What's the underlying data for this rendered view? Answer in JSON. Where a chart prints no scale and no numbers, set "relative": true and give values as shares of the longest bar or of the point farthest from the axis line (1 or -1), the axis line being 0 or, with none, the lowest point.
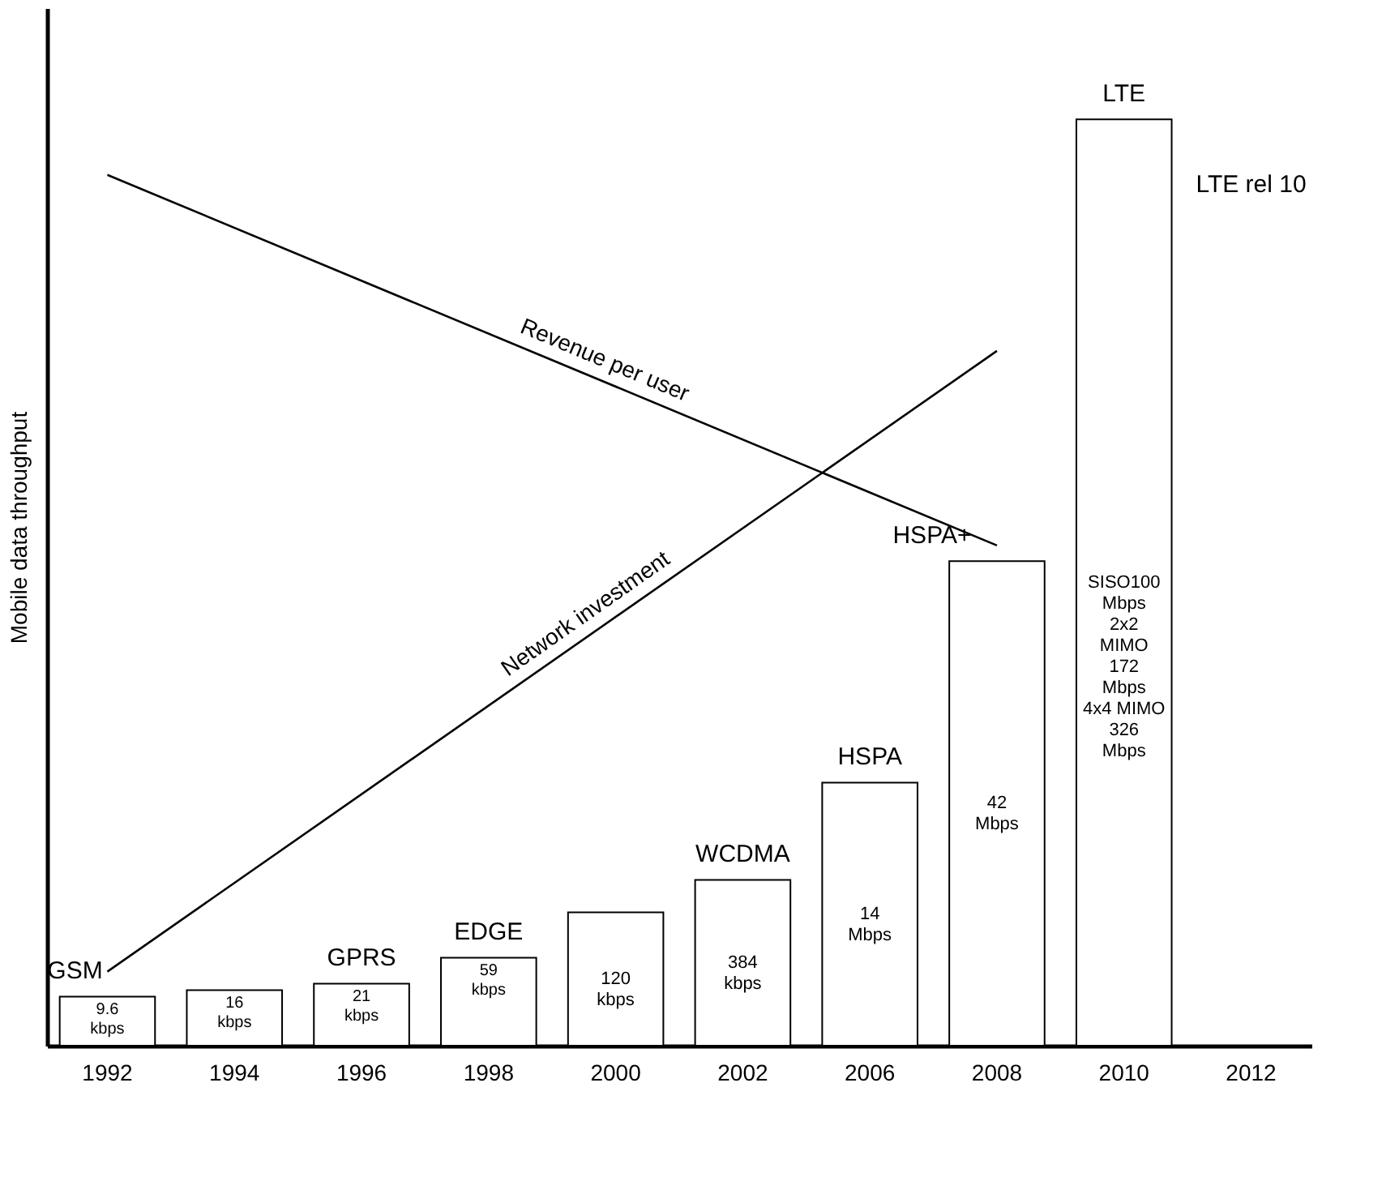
{
  "chart_data": {
    "type": "bar",
    "relative": true,
    "ylabel": "Mobile data throughput",
    "categories": [
      "1992",
      "1994",
      "1996",
      "1998",
      "2000",
      "2002",
      "2006",
      "2008",
      "2010",
      "2012"
    ],
    "values": [
      0.053,
      0.06,
      0.067,
      0.095,
      0.144,
      0.179,
      0.284,
      0.523,
      1,
      null
    ],
    "color": "#ffffff",
    "series": [
      {
        "name": "Revenue per user",
        "type": "line",
        "color": "#000000",
        "values": [
          0.94,
          null,
          null,
          null,
          null,
          null,
          null,
          0.54,
          null,
          null
        ]
      },
      {
        "name": "Network investment",
        "type": "line",
        "color": "#000000",
        "values": [
          0.08,
          null,
          null,
          null,
          null,
          null,
          null,
          0.75,
          null,
          null
        ]
      }
    ],
    "annotations": [
      "GSM",
      "GPRS",
      "EDGE",
      "WCDMA",
      "HSPA",
      "HSPA+",
      "LTE",
      "LTE rel 10",
      "9.6\nkbps",
      "16\nkbps",
      "21\nkbps",
      "59\nkbps",
      "120\nkbps",
      "384\nkbps",
      "14\nMbps",
      "42\nMbps",
      "SISO100\nMbps\n\n2x2\nMIMO\n172\nMbps\n\n4x4 MIMO\n326\nMbps"
    ]
  }
}
